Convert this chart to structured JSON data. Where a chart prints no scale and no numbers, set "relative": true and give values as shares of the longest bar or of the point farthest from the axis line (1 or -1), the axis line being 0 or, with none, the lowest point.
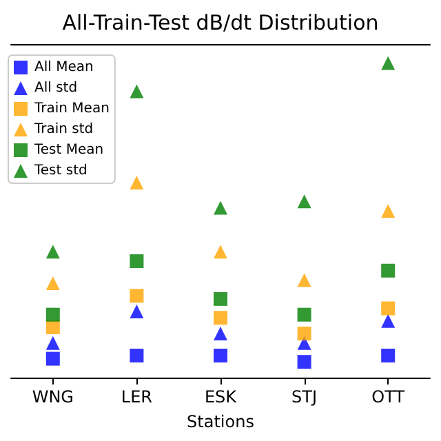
{
  "chart_data": {
    "type": "scatter",
    "title": "All-Train-Test dB/dt Distribution",
    "xlabel": "Stations",
    "relative": true,
    "legend": "top left",
    "categories": [
      "WNG",
      "LER",
      "ESK",
      "STJ",
      "OTT"
    ],
    "series": [
      {
        "name": "All Mean",
        "color": "#0000ff",
        "marker": "square",
        "values": [
          0.06,
          0.07,
          0.07,
          0.05,
          0.07
        ]
      },
      {
        "name": "All std",
        "color": "#0000ff",
        "marker": "triangle",
        "values": [
          0.11,
          0.21,
          0.14,
          0.11,
          0.18
        ]
      },
      {
        "name": "Train Mean",
        "color": "#ffa500",
        "marker": "square",
        "values": [
          0.16,
          0.26,
          0.19,
          0.14,
          0.22
        ]
      },
      {
        "name": "Train std",
        "color": "#ffa500",
        "marker": "triangle",
        "values": [
          0.3,
          0.62,
          0.4,
          0.31,
          0.53
        ]
      },
      {
        "name": "Test Mean",
        "color": "#008000",
        "marker": "square",
        "values": [
          0.2,
          0.37,
          0.25,
          0.2,
          0.34
        ]
      },
      {
        "name": "Test std",
        "color": "#008000",
        "marker": "triangle",
        "values": [
          0.4,
          0.91,
          0.54,
          0.56,
          1
        ]
      }
    ]
  }
}
